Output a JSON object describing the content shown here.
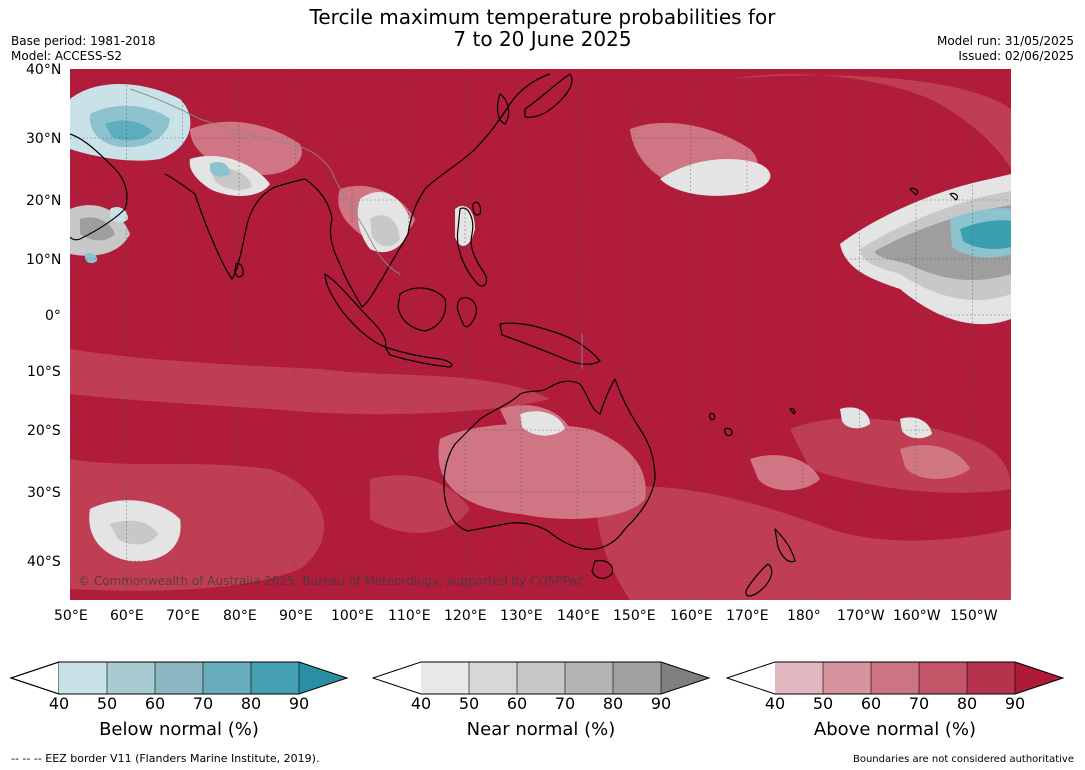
{
  "header": {
    "title_line1": "Tercile maximum temperature probabilities for",
    "title_line2": "7 to 20 June 2025",
    "base_period": "Base period: 1981-2018",
    "model": "Model: ACCESS-S2",
    "model_run": "Model run: 31/05/2025",
    "issued": "Issued: 02/06/2025"
  },
  "map": {
    "copyright": "© Commonwealth of Australia 2025, Bureau of Meteorology, supported by COSPPac",
    "lat_labels": [
      "40°N",
      "30°N",
      "20°N",
      "10°N",
      "0°",
      "10°S",
      "20°S",
      "30°S",
      "40°S"
    ],
    "lon_labels": [
      "50°E",
      "60°E",
      "70°E",
      "80°E",
      "90°E",
      "100°E",
      "110°E",
      "120°E",
      "130°E",
      "140°E",
      "150°E",
      "160°E",
      "170°E",
      "180°",
      "170°W",
      "160°W",
      "150°W"
    ],
    "colors": {
      "above_base": "#b01c3a",
      "above_mid": "#c24257",
      "above_light": "#d27a87",
      "near_light": "#e4e4e4",
      "near_mid": "#c8c8c8",
      "near_dark": "#9e9e9e",
      "below_light": "#c9e2e8",
      "below_mid": "#8cc3cf",
      "below_dark": "#3a9fb0",
      "coast": "#000000",
      "border": "#8a8a8a"
    }
  },
  "colorbars": [
    {
      "title": "Below normal (%)",
      "ticks": [
        "40",
        "50",
        "60",
        "70",
        "80",
        "90"
      ],
      "colors": [
        "#c9e2e8",
        "#a8cbd2",
        "#8ab6c1",
        "#68adbd",
        "#44a1b3",
        "#2b8fa4"
      ]
    },
    {
      "title": "Near normal (%)",
      "ticks": [
        "40",
        "50",
        "60",
        "70",
        "80",
        "90"
      ],
      "colors": [
        "#e8e8e8",
        "#d7d7d7",
        "#c6c6c6",
        "#b4b4b4",
        "#a0a0a0",
        "#7f7f7f"
      ]
    },
    {
      "title": "Above normal (%)",
      "ticks": [
        "40",
        "50",
        "60",
        "70",
        "80",
        "90"
      ],
      "colors": [
        "#e2b7bf",
        "#d6959e",
        "#cc7482",
        "#c25568",
        "#b5334c",
        "#ae1b39"
      ]
    }
  ],
  "footer": {
    "eez_note": "--  --  -- EEZ border V11 (Flanders Marine Institute, 2019).",
    "disclaimer": "Boundaries are not considered authoritative"
  }
}
